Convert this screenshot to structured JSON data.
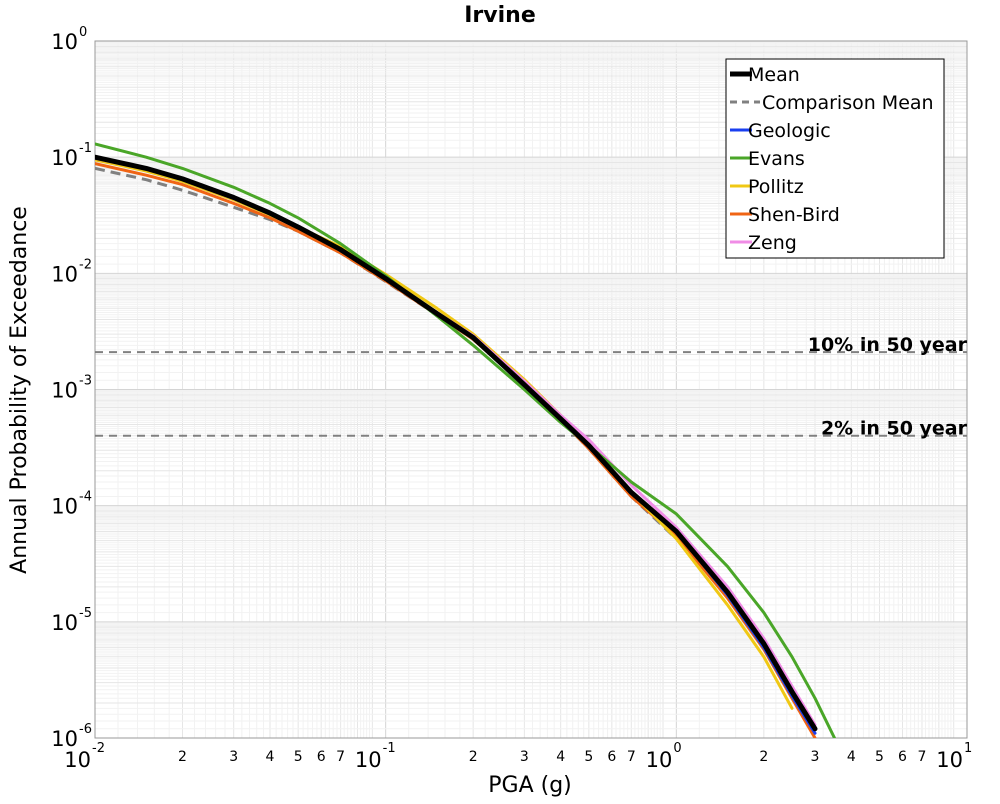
{
  "chart_data": {
    "type": "line",
    "title": "Irvine",
    "xlabel": "PGA (g)",
    "ylabel": "Annual Probability of Exceedance",
    "x_scale": "log",
    "y_scale": "log",
    "xlim": [
      0.01,
      10
    ],
    "ylim": [
      1e-06,
      1
    ],
    "grid": true,
    "legend_position": "top-right",
    "x_major_ticks": [
      {
        "base": "10",
        "exp": "-2"
      },
      {
        "base": "10",
        "exp": "-1"
      },
      {
        "base": "10",
        "exp": "0"
      },
      {
        "base": "10",
        "exp": "1"
      }
    ],
    "y_major_ticks": [
      {
        "base": "10",
        "exp": "0"
      },
      {
        "base": "10",
        "exp": "-1"
      },
      {
        "base": "10",
        "exp": "-2"
      },
      {
        "base": "10",
        "exp": "-3"
      },
      {
        "base": "10",
        "exp": "-4"
      },
      {
        "base": "10",
        "exp": "-5"
      },
      {
        "base": "10",
        "exp": "-6"
      }
    ],
    "x_minor_tick_labels": [
      "2",
      "3",
      "4",
      "5",
      "6",
      "7"
    ],
    "reference_lines": [
      {
        "label": "10% in 50 year",
        "y": 0.0021
      },
      {
        "label": "2% in 50 year",
        "y": 0.0004
      }
    ],
    "x": [
      0.01,
      0.015,
      0.02,
      0.03,
      0.04,
      0.05,
      0.07,
      0.1,
      0.15,
      0.2,
      0.3,
      0.4,
      0.5,
      0.7,
      1.0,
      1.5,
      2.0,
      2.5,
      3.0,
      3.5
    ],
    "series": [
      {
        "name": "Mean",
        "color": "#000000",
        "style": "solid-thick",
        "values": [
          0.1,
          0.08,
          0.065,
          0.045,
          0.033,
          0.025,
          0.016,
          0.009,
          0.0045,
          0.0028,
          0.0011,
          0.00056,
          0.00033,
          0.00013,
          6e-05,
          1.8e-05,
          6.5e-06,
          2.5e-06,
          1.2e-06,
          null
        ]
      },
      {
        "name": "Comparison Mean",
        "color": "#808080",
        "style": "dashed",
        "values": [
          0.08,
          0.064,
          0.052,
          0.037,
          0.029,
          0.023,
          0.015,
          0.0085,
          0.0044,
          0.0027,
          0.0011,
          0.00055,
          0.00031,
          0.00012,
          5.2e-05,
          null,
          null,
          null,
          null,
          null
        ]
      },
      {
        "name": "Geologic",
        "color": "#1a3ff0",
        "style": "solid",
        "values": [
          0.1,
          0.08,
          0.065,
          0.045,
          0.033,
          0.025,
          0.016,
          0.009,
          0.0045,
          0.0028,
          0.0011,
          0.00056,
          0.00032,
          0.00013,
          6e-05,
          1.7e-05,
          6e-06,
          2.3e-06,
          1.1e-06,
          null
        ]
      },
      {
        "name": "Evans",
        "color": "#4aa628",
        "style": "solid",
        "values": [
          0.13,
          0.1,
          0.08,
          0.055,
          0.04,
          0.03,
          0.018,
          0.0095,
          0.0043,
          0.0024,
          0.001,
          0.00052,
          0.00033,
          0.00016,
          8.5e-05,
          3e-05,
          1.2e-05,
          5e-06,
          2.2e-06,
          1e-06
        ]
      },
      {
        "name": "Pollitz",
        "color": "#f0c814",
        "style": "solid",
        "values": [
          0.095,
          0.076,
          0.062,
          0.043,
          0.032,
          0.025,
          0.017,
          0.0098,
          0.005,
          0.003,
          0.00122,
          0.0006,
          0.00033,
          0.00013,
          5.2e-05,
          1.4e-05,
          5e-06,
          1.8e-06,
          null,
          null
        ]
      },
      {
        "name": "Shen-Bird",
        "color": "#f06414",
        "style": "solid",
        "values": [
          0.088,
          0.07,
          0.058,
          0.04,
          0.03,
          0.023,
          0.015,
          0.0086,
          0.0044,
          0.0027,
          0.0011,
          0.00055,
          0.00031,
          0.00012,
          5.5e-05,
          1.6e-05,
          5.8e-06,
          2.2e-06,
          1e-06,
          null
        ]
      },
      {
        "name": "Zeng",
        "color": "#f08ce6",
        "style": "solid",
        "values": [
          0.098,
          0.079,
          0.064,
          0.044,
          0.033,
          0.025,
          0.016,
          0.009,
          0.0046,
          0.0029,
          0.00118,
          0.0006,
          0.00037,
          0.00015,
          6.5e-05,
          2e-05,
          7.2e-06,
          2.8e-06,
          1.3e-06,
          null
        ]
      }
    ]
  }
}
